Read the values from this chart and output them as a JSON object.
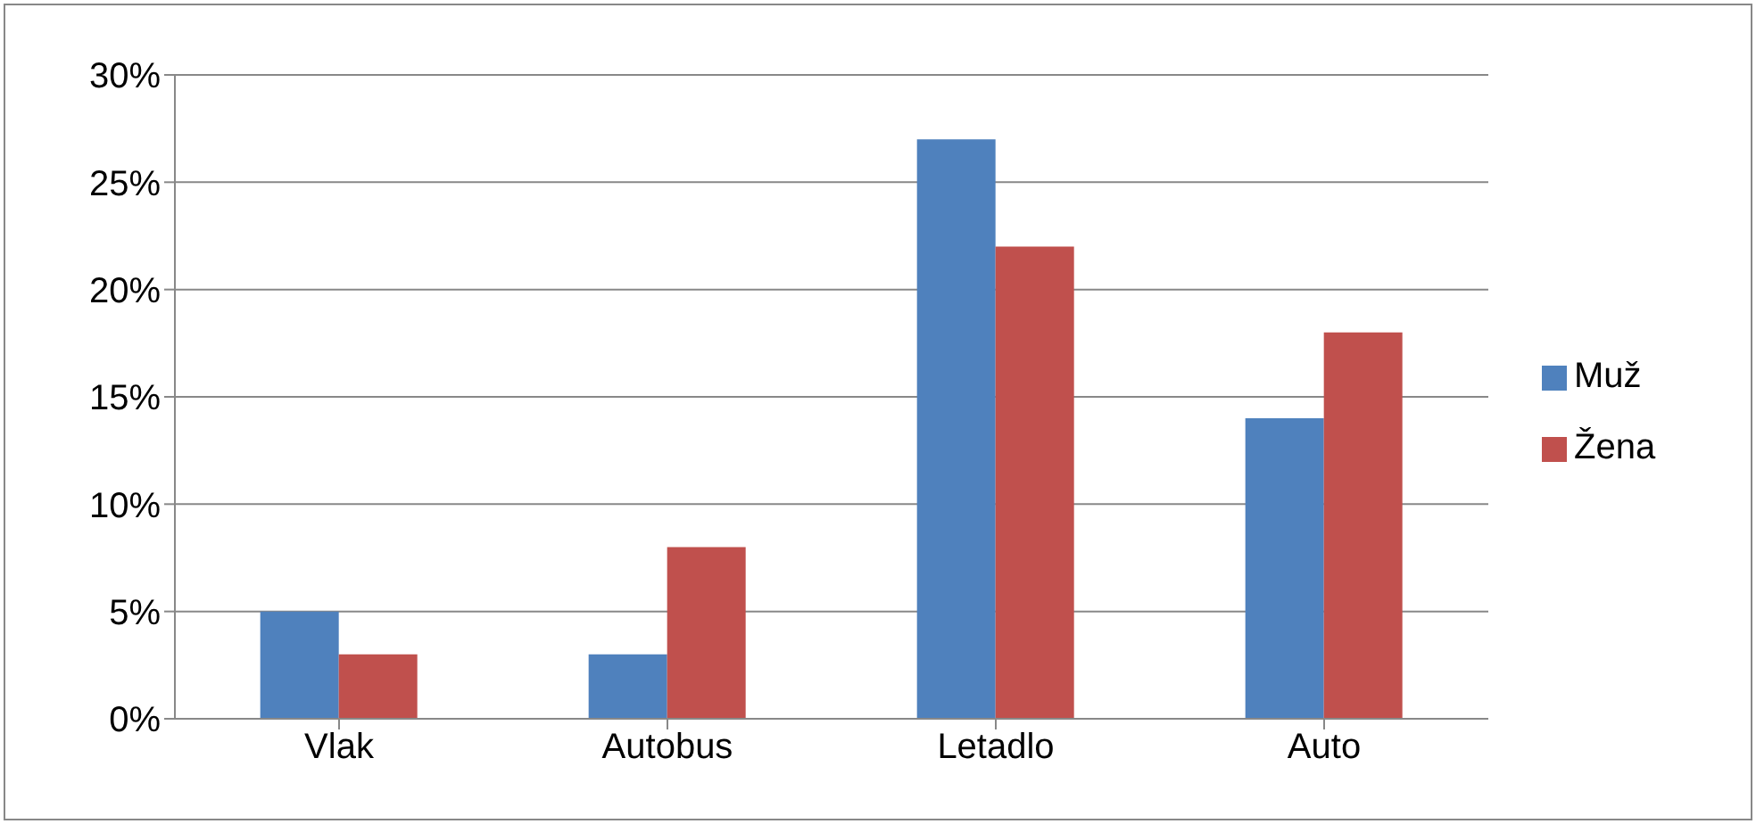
{
  "chart_data": {
    "type": "bar",
    "categories": [
      "Vlak",
      "Autobus",
      "Letadlo",
      "Auto"
    ],
    "series": [
      {
        "name": "Muž",
        "color": "#4f81bd",
        "values": [
          5,
          3,
          27,
          14
        ]
      },
      {
        "name": "Žena",
        "color": "#c0504d",
        "values": [
          3,
          8,
          22,
          18
        ]
      }
    ],
    "ylim": [
      0,
      30
    ],
    "yticks": [
      {
        "value": 0,
        "label": "0%"
      },
      {
        "value": 5,
        "label": "5%"
      },
      {
        "value": 10,
        "label": "10%"
      },
      {
        "value": 15,
        "label": "15%"
      },
      {
        "value": 20,
        "label": "20%"
      },
      {
        "value": 25,
        "label": "25%"
      },
      {
        "value": 30,
        "label": "30%"
      }
    ],
    "grid": "y",
    "legend": "right"
  }
}
